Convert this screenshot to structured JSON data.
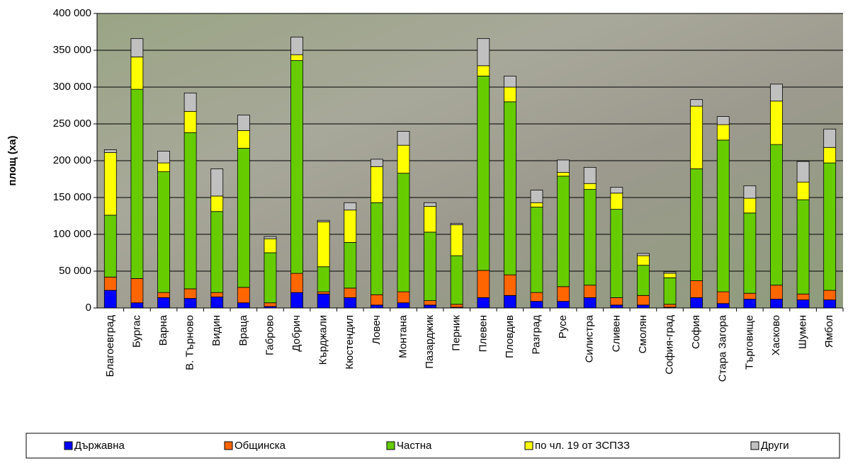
{
  "chart_data": {
    "type": "stacked-bar",
    "y_label": "площ (ха)",
    "categories": [
      "Благоевград",
      "Бургас",
      "Варна",
      "В. Търново",
      "Видин",
      "Враца",
      "Габрово",
      "Добрич",
      "Кърджали",
      "Кюстендил",
      "Ловеч",
      "Монтана",
      "Пазарджик",
      "Перник",
      "Плевен",
      "Пловдив",
      "Разград",
      "Русе",
      "Силистра",
      "Сливен",
      "Смолян",
      "София-град",
      "София",
      "Стара Загора",
      "Търговище",
      "Хасково",
      "Шумен",
      "Ямбол"
    ],
    "series": [
      {
        "name": "Държавна",
        "color": "#0000ff",
        "values": [
          24000,
          7000,
          14000,
          13000,
          15000,
          7000,
          2000,
          21000,
          19000,
          14000,
          4000,
          7000,
          4000,
          1000,
          14000,
          17000,
          9000,
          9000,
          14000,
          4000,
          4000,
          1000,
          14000,
          6000,
          12000,
          12000,
          11000,
          11000
        ]
      },
      {
        "name": "Общинска",
        "color": "#ff6600",
        "values": [
          18000,
          33000,
          7000,
          13000,
          6000,
          21000,
          5000,
          26000,
          3000,
          13000,
          14000,
          15000,
          6000,
          4000,
          37000,
          28000,
          12000,
          20000,
          17000,
          10000,
          13000,
          4000,
          23000,
          16000,
          8000,
          19000,
          8000,
          13000
        ]
      },
      {
        "name": "Частна",
        "color": "#66cc00",
        "values": [
          84000,
          257000,
          164000,
          212000,
          110000,
          189000,
          68000,
          289000,
          34000,
          62000,
          125000,
          161000,
          93000,
          66000,
          264000,
          235000,
          116000,
          150000,
          130000,
          120000,
          41000,
          36000,
          152000,
          206000,
          109000,
          191000,
          128000,
          173000
        ]
      },
      {
        "name": "по чл. 19 от ЗСПЗЗ",
        "color": "#ffff00",
        "values": [
          85000,
          44000,
          12000,
          29000,
          21000,
          24000,
          19000,
          8000,
          61000,
          44000,
          49000,
          38000,
          35000,
          42000,
          14000,
          20000,
          6000,
          5000,
          8000,
          22000,
          13000,
          6000,
          85000,
          21000,
          20000,
          59000,
          24000,
          21000
        ]
      },
      {
        "name": "Други",
        "color": "#c0c0c0",
        "values": [
          4000,
          25000,
          16000,
          25000,
          37000,
          21000,
          3000,
          24000,
          2000,
          10000,
          10000,
          19000,
          5000,
          2000,
          37000,
          15000,
          17000,
          17000,
          22000,
          8000,
          3000,
          2000,
          9000,
          11000,
          17000,
          23000,
          28000,
          25000
        ]
      }
    ],
    "ylim": [
      0,
      400000
    ],
    "yticks": [
      0,
      {
        "value": 50000,
        "label": "50 000"
      },
      {
        "value": 100000,
        "label": "100 000"
      },
      {
        "value": 150000,
        "label": "150 000"
      },
      {
        "value": 200000,
        "label": "200 000"
      },
      {
        "value": 250000,
        "label": "250 000"
      },
      {
        "value": 300000,
        "label": "300 000"
      },
      {
        "value": 350000,
        "label": "350 000"
      },
      {
        "value": 400000,
        "label": "400 000"
      }
    ],
    "grid": true
  }
}
